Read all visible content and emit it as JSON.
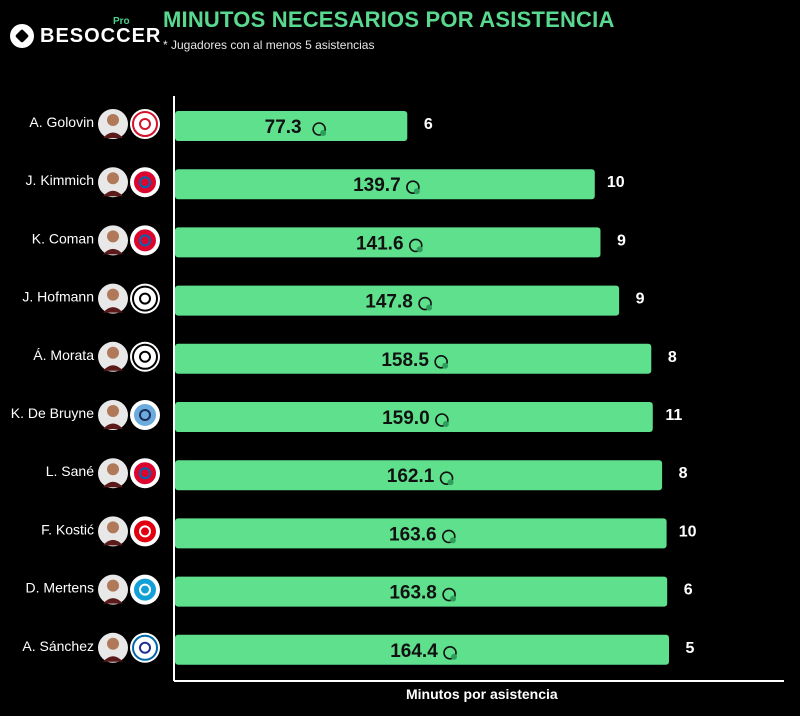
{
  "header": {
    "brand": "BESOCCER",
    "brand_badge": "Pro",
    "title": "MINUTOS NECESARIOS POR ASISTENCIA",
    "subtitle": "* Jugadores con al menos 5 asistencias"
  },
  "chart_data": {
    "type": "bar",
    "orientation": "horizontal",
    "title": "MINUTOS NECESARIOS POR ASISTENCIA",
    "subtitle": "* Jugadores con al menos 5 asistencias",
    "xlabel": "Minutos por asistencia",
    "ylabel": "",
    "grid": false,
    "colors": {
      "bar": "#5ee08c",
      "background": "#000000",
      "label": "#ffffff",
      "value_text": "#111111"
    },
    "categories": [
      "A. Golovin",
      "J. Kimmich",
      "K. Coman",
      "J. Hofmann",
      "Á. Morata",
      "K. De Bruyne",
      "L. Sané",
      "F. Kostić",
      "D. Mertens",
      "A. Sánchez"
    ],
    "values": [
      77.3,
      139.7,
      141.6,
      147.8,
      158.5,
      159.0,
      162.1,
      163.6,
      163.8,
      164.4
    ],
    "value_labels": [
      "77.3",
      "139.7",
      "141.6",
      "147.8",
      "158.5",
      "159.0",
      "162.1",
      "163.6",
      "163.8",
      "164.4"
    ],
    "assists": [
      6,
      10,
      9,
      9,
      8,
      11,
      8,
      10,
      6,
      5
    ],
    "clubs": [
      "monaco-crest",
      "bayern-crest",
      "bayern-crest",
      "gladbach-crest",
      "juventus-crest",
      "man-city-crest",
      "bayern-crest",
      "frankfurt-crest",
      "napoli-crest",
      "inter-crest"
    ],
    "xlim": [
      0,
      170
    ]
  }
}
